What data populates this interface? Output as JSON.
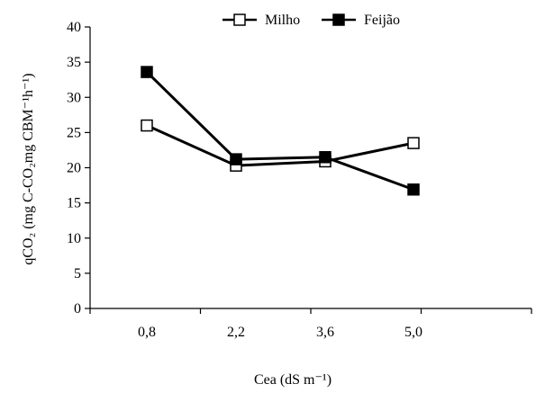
{
  "chart_data": {
    "type": "line",
    "categories": [
      "0,8",
      "2,2",
      "3,6",
      "5,0"
    ],
    "series": [
      {
        "name": "Milho",
        "marker": "open-square",
        "values": [
          26.0,
          20.3,
          20.9,
          23.5
        ]
      },
      {
        "name": "Feijão",
        "marker": "filled-square",
        "values": [
          33.6,
          21.2,
          21.5,
          16.9
        ]
      }
    ],
    "yticks": [
      "0",
      "5",
      "10",
      "15",
      "20",
      "25",
      "30",
      "35",
      "40"
    ],
    "ylim": [
      0,
      40
    ],
    "ylabel": "qCO₂ (mg C-CO₂mg CBM⁻¹h⁻¹)",
    "xlabel": "Cea (dS m⁻¹)",
    "grid": false,
    "legend_position": "top",
    "colors": {
      "line": "#000000",
      "open_marker_fill": "#ffffff",
      "filled_marker_fill": "#000000"
    }
  }
}
